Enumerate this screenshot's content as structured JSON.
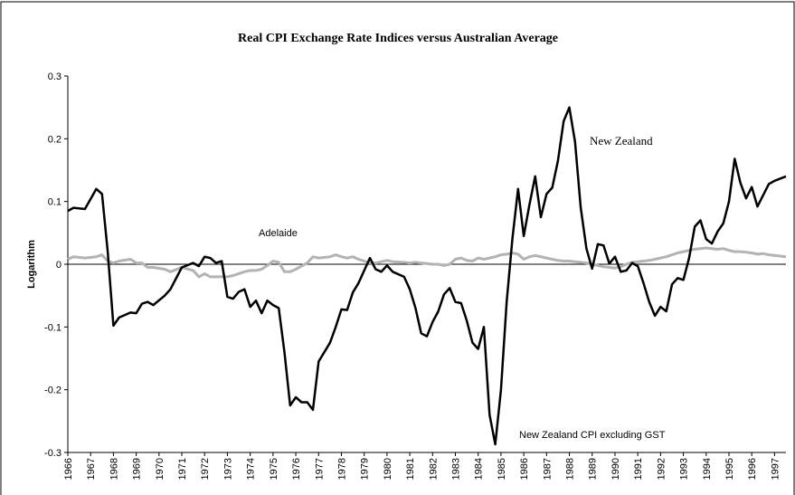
{
  "chart_data": {
    "type": "line",
    "title": "Real CPI Exchange Rate Indices versus Australian Average",
    "y_label": "Logarithm",
    "annotations": [
      "New Zealand CPI excluding GST"
    ],
    "x": [
      1966,
      1966.25,
      1966.75,
      1967.25,
      1967.5,
      1967.75,
      1968,
      1968.25,
      1968.75,
      1969,
      1969.25,
      1969.5,
      1969.75,
      1970.25,
      1970.5,
      1971,
      1971.5,
      1971.75,
      1972,
      1972.25,
      1972.5,
      1972.75,
      1973,
      1973.25,
      1973.5,
      1973.75,
      1974,
      1974.25,
      1974.5,
      1974.75,
      1975,
      1975.25,
      1975.5,
      1975.75,
      1976,
      1976.25,
      1976.5,
      1976.75,
      1977,
      1977.5,
      1977.75,
      1978,
      1978.25,
      1978.5,
      1978.75,
      1979,
      1979.25,
      1979.5,
      1979.75,
      1980,
      1980.25,
      1980.75,
      1981,
      1981.25,
      1981.5,
      1981.75,
      1982,
      1982.25,
      1982.5,
      1982.75,
      1983,
      1983.25,
      1983.5,
      1983.75,
      1984,
      1984.25,
      1984.5,
      1984.75,
      1985,
      1985.25,
      1985.5,
      1985.75,
      1986,
      1986.25,
      1986.5,
      1986.75,
      1987,
      1987.25,
      1987.5,
      1987.75,
      1988,
      1988.25,
      1988.5,
      1988.75,
      1989,
      1989.25,
      1989.5,
      1989.75,
      1990,
      1990.25,
      1990.5,
      1990.75,
      1991,
      1991.25,
      1991.5,
      1991.75,
      1992,
      1992.25,
      1992.5,
      1992.75,
      1993,
      1993.25,
      1993.5,
      1993.75,
      1994,
      1994.25,
      1994.5,
      1994.75,
      1995,
      1995.25,
      1995.5,
      1995.75,
      1996,
      1996.25,
      1996.5,
      1996.75,
      1997,
      1997.5
    ],
    "series": [
      {
        "name": "New Zealand",
        "color": "#000000",
        "values": [
          0.085,
          0.09,
          0.088,
          0.12,
          0.112,
          0.02,
          -0.098,
          -0.085,
          -0.077,
          -0.078,
          -0.063,
          -0.06,
          -0.065,
          -0.05,
          -0.04,
          -0.005,
          0.002,
          -0.003,
          0.012,
          0.01,
          0.002,
          0.005,
          -0.052,
          -0.055,
          -0.044,
          -0.04,
          -0.068,
          -0.058,
          -0.078,
          -0.058,
          -0.065,
          -0.07,
          -0.14,
          -0.225,
          -0.212,
          -0.22,
          -0.22,
          -0.232,
          -0.155,
          -0.125,
          -0.1,
          -0.072,
          -0.073,
          -0.045,
          -0.03,
          -0.01,
          0.01,
          -0.008,
          -0.012,
          -0.002,
          -0.012,
          -0.02,
          -0.04,
          -0.07,
          -0.11,
          -0.115,
          -0.092,
          -0.075,
          -0.048,
          -0.038,
          -0.06,
          -0.062,
          -0.09,
          -0.125,
          -0.135,
          -0.1,
          -0.24,
          -0.287,
          -0.2,
          -0.06,
          0.04,
          0.12,
          0.045,
          0.095,
          0.14,
          0.075,
          0.112,
          0.122,
          0.165,
          0.228,
          0.25,
          0.195,
          0.09,
          0.025,
          -0.007,
          0.032,
          0.03,
          0.001,
          0.012,
          -0.012,
          -0.01,
          0.002,
          -0.003,
          -0.03,
          -0.06,
          -0.082,
          -0.068,
          -0.075,
          -0.032,
          -0.022,
          -0.025,
          0.01,
          0.06,
          0.07,
          0.04,
          0.033,
          0.052,
          0.065,
          0.1,
          0.168,
          0.13,
          0.105,
          0.123,
          0.092,
          0.11,
          0.128,
          0.133,
          0.14
        ]
      },
      {
        "name": "Adelaide",
        "color": "#b3b3b3",
        "values": [
          0.008,
          0.012,
          0.01,
          0.012,
          0.015,
          0.005,
          0.002,
          0.005,
          0.008,
          0.002,
          0.002,
          -0.005,
          -0.005,
          -0.008,
          -0.012,
          -0.005,
          -0.01,
          -0.02,
          -0.015,
          -0.02,
          -0.02,
          -0.02,
          -0.02,
          -0.018,
          -0.015,
          -0.012,
          -0.01,
          -0.01,
          -0.008,
          -0.002,
          0.005,
          0.003,
          -0.012,
          -0.012,
          -0.008,
          -0.003,
          0.002,
          0.012,
          0.01,
          0.012,
          0.015,
          0.012,
          0.01,
          0.012,
          0.008,
          0.005,
          0.002,
          0.002,
          0.004,
          0.006,
          0.004,
          0.003,
          0.002,
          0.003,
          0.002,
          0.001,
          0.0,
          0.0,
          -0.002,
          0.0,
          0.008,
          0.01,
          0.006,
          0.005,
          0.01,
          0.008,
          0.01,
          0.012,
          0.015,
          0.016,
          0.018,
          0.016,
          0.008,
          0.012,
          0.014,
          0.012,
          0.01,
          0.008,
          0.006,
          0.005,
          0.005,
          0.004,
          0.003,
          0.002,
          0.0,
          -0.002,
          -0.004,
          -0.005,
          -0.006,
          -0.004,
          0.0,
          0.003,
          0.004,
          0.005,
          0.006,
          0.008,
          0.01,
          0.012,
          0.015,
          0.018,
          0.02,
          0.022,
          0.024,
          0.025,
          0.026,
          0.025,
          0.024,
          0.025,
          0.022,
          0.02,
          0.02,
          0.019,
          0.018,
          0.016,
          0.017,
          0.015,
          0.014,
          0.012
        ]
      }
    ],
    "xlim": [
      1966,
      1997.5
    ],
    "xticks": [
      1966,
      1967,
      1968,
      1969,
      1970,
      1971,
      1972,
      1973,
      1974,
      1975,
      1976,
      1977,
      1978,
      1979,
      1980,
      1981,
      1982,
      1983,
      1984,
      1985,
      1986,
      1987,
      1988,
      1989,
      1990,
      1991,
      1992,
      1993,
      1994,
      1995,
      1996,
      1997
    ],
    "ylim": [
      -0.3,
      0.3
    ],
    "yticks": [
      0.3,
      0.2,
      0.1,
      0,
      -0.1,
      -0.2,
      -0.3
    ]
  }
}
